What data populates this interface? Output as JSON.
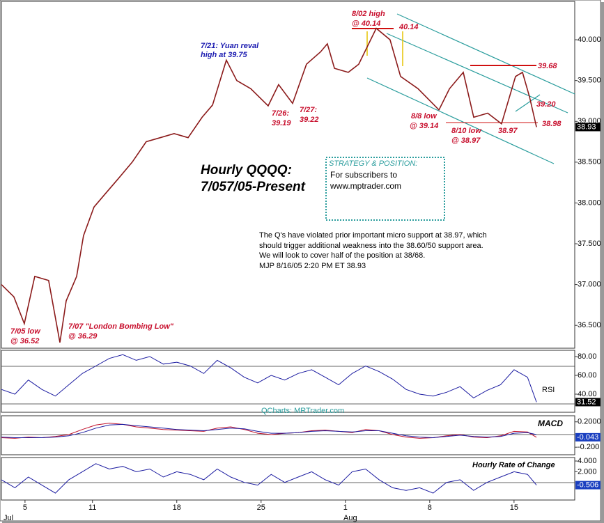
{
  "chart_data": [
    {
      "type": "line",
      "title": [
        "Hourly QQQQ:",
        "7/057/05-Present"
      ],
      "color": "#8b1a1a",
      "x": [
        -1.4,
        -0.66,
        -0.04,
        0.58,
        1.4,
        2.07,
        2.44,
        3.06,
        3.47,
        4.09,
        4.71,
        5.54,
        6.36,
        7.19,
        8.02,
        8.84,
        9.67,
        10.5,
        11.12,
        11.94,
        12.56,
        13.39,
        14.42,
        15.04,
        15.87,
        16.69,
        17.52,
        17.93,
        18.35,
        19.17,
        19.79,
        20.83,
        21.65,
        22.27,
        23.31,
        24.55,
        25.17,
        25.99,
        26.61,
        27.44,
        28.26,
        29.09,
        29.5,
        29.92,
        30.33
      ],
      "values": [
        37.0,
        36.85,
        36.52,
        37.1,
        37.05,
        36.29,
        36.8,
        37.1,
        37.6,
        37.95,
        38.1,
        38.3,
        38.5,
        38.75,
        38.8,
        38.85,
        38.8,
        39.05,
        39.2,
        39.75,
        39.5,
        39.4,
        39.19,
        39.45,
        39.22,
        39.7,
        39.85,
        39.95,
        39.65,
        39.6,
        39.7,
        40.14,
        40.0,
        39.55,
        39.4,
        39.14,
        39.4,
        39.6,
        39.05,
        39.1,
        38.97,
        39.55,
        39.6,
        39.3,
        38.93
      ],
      "xlim": [
        -1.4,
        32.6
      ],
      "xticks": [
        {
          "value": 0,
          "label": "5"
        },
        {
          "value": 4,
          "label": "11"
        },
        {
          "value": 9,
          "label": "18"
        },
        {
          "value": 14,
          "label": "25"
        },
        {
          "value": 19,
          "label": "1"
        },
        {
          "value": 24,
          "label": "8"
        },
        {
          "value": 29,
          "label": "15"
        }
      ],
      "months": [
        "Jul",
        "Aug"
      ],
      "ylim": [
        36.22,
        40.47
      ],
      "yticks": [
        {
          "value": 40,
          "label": "40.000"
        },
        {
          "value": 39.5,
          "label": "39.500"
        },
        {
          "value": 39,
          "label": "39.000"
        },
        {
          "value": 38.5,
          "label": "38.500"
        },
        {
          "value": 38,
          "label": "38.000"
        },
        {
          "value": 37.5,
          "label": "37.500"
        },
        {
          "value": 37,
          "label": "37.000"
        },
        {
          "value": 36.5,
          "label": "36.500"
        }
      ],
      "annotations": [
        "7/05 low",
        "@ 36.52",
        "7/07 \"London Bombing Low\"",
        "@ 36.29",
        "7/21: Yuan reval",
        "high at 39.75",
        "7/26:",
        "39.19",
        "7/27:",
        "39.22",
        "8/02 high",
        "@ 40.14",
        "40.14",
        "8/8 low",
        "@ 39.14",
        "8/10 low",
        "@ 38.97",
        "38.97",
        "39.68",
        "39.20",
        "38.98"
      ],
      "box": {
        "title": "STRATEGY & POSITION:",
        "lines": [
          "For subscribers to",
          "www.mptrader.com"
        ]
      },
      "commentary": [
        "The Q's have violated prior important micro support at 38.97, which",
        "should trigger additional weakness into the 38.60/50 support area.",
        "We will look to cover half of the position at 38/68.",
        "MJP 8/16/05 2:20 PM ET 38.93"
      ]
    },
    {
      "type": "line",
      "label": "RSI",
      "watermark": "QCharts: MRTrader.com",
      "color": "#1a1aa0",
      "x": [
        -1.4,
        -0.6,
        0.2,
        1.0,
        1.8,
        2.6,
        3.4,
        4.2,
        5.0,
        5.8,
        6.6,
        7.4,
        8.2,
        9.0,
        9.8,
        10.6,
        11.4,
        12.2,
        13.0,
        13.8,
        14.6,
        15.4,
        16.2,
        17.0,
        17.8,
        18.6,
        19.4,
        20.2,
        21.0,
        21.8,
        22.6,
        23.4,
        24.2,
        25.0,
        25.8,
        26.6,
        27.4,
        28.2,
        29.0,
        29.8,
        30.33
      ],
      "values": [
        45,
        40,
        55,
        45,
        38,
        50,
        62,
        70,
        78,
        82,
        76,
        80,
        72,
        74,
        70,
        62,
        76,
        68,
        58,
        52,
        60,
        55,
        62,
        66,
        58,
        50,
        62,
        70,
        64,
        56,
        45,
        40,
        38,
        42,
        48,
        36,
        44,
        50,
        66,
        58,
        31.52
      ],
      "xlim": [
        -1.4,
        32.6
      ],
      "ylim": [
        20.7,
        86.7
      ],
      "yticks": [
        {
          "value": 80,
          "label": "80.00"
        },
        {
          "value": 60,
          "label": "60.00"
        },
        {
          "value": 40,
          "label": "40.00"
        }
      ]
    },
    {
      "type": "line",
      "label": "MACD",
      "x": [
        -1.4,
        -0.6,
        0.2,
        1.0,
        1.8,
        2.6,
        3.4,
        4.2,
        5.0,
        5.8,
        6.6,
        7.4,
        8.2,
        9.0,
        9.8,
        10.6,
        11.4,
        12.2,
        13.0,
        13.8,
        14.6,
        15.4,
        16.2,
        17.0,
        17.8,
        18.6,
        19.4,
        20.2,
        21.0,
        21.8,
        22.6,
        23.4,
        24.2,
        25.0,
        25.8,
        26.6,
        27.4,
        28.2,
        29.0,
        29.8,
        30.33
      ],
      "series": [
        {
          "color": "#c0102a",
          "values": [
            -0.05,
            -0.06,
            -0.04,
            -0.05,
            -0.03,
            0.0,
            0.08,
            0.15,
            0.18,
            0.16,
            0.12,
            0.1,
            0.08,
            0.07,
            0.06,
            0.05,
            0.1,
            0.12,
            0.08,
            0.02,
            0.0,
            0.02,
            0.03,
            0.06,
            0.07,
            0.05,
            0.03,
            0.08,
            0.06,
            0.0,
            -0.04,
            -0.06,
            -0.05,
            -0.02,
            0.0,
            -0.04,
            -0.05,
            -0.02,
            0.05,
            0.04,
            -0.043
          ]
        },
        {
          "color": "#1a1aa0",
          "values": [
            -0.04,
            -0.05,
            -0.05,
            -0.05,
            -0.04,
            -0.02,
            0.03,
            0.1,
            0.15,
            0.16,
            0.14,
            0.12,
            0.1,
            0.08,
            0.07,
            0.06,
            0.08,
            0.1,
            0.09,
            0.05,
            0.02,
            0.02,
            0.03,
            0.05,
            0.06,
            0.05,
            0.04,
            0.06,
            0.06,
            0.02,
            -0.02,
            -0.04,
            -0.05,
            -0.03,
            -0.01,
            -0.03,
            -0.04,
            -0.03,
            0.02,
            0.03,
            0.0
          ]
        }
      ],
      "xlim": [
        -1.4,
        32.6
      ],
      "ylim": [
        -0.319,
        0.296
      ],
      "yticks": [
        {
          "value": 0.2,
          "label": "0.2000"
        },
        {
          "value": -0.2,
          "label": "-0.200"
        }
      ]
    },
    {
      "type": "line",
      "label": "Hourly Rate of Change",
      "color": "#1a1aa0",
      "x": [
        -1.4,
        -0.6,
        0.2,
        1.0,
        1.8,
        2.6,
        3.4,
        4.2,
        5.0,
        5.8,
        6.6,
        7.4,
        8.2,
        9.0,
        9.8,
        10.6,
        11.4,
        12.2,
        13.0,
        13.8,
        14.6,
        15.4,
        16.2,
        17.0,
        17.8,
        18.6,
        19.4,
        20.2,
        21.0,
        21.8,
        22.6,
        23.4,
        24.2,
        25.0,
        25.8,
        26.6,
        27.4,
        28.2,
        29.0,
        29.8,
        30.33
      ],
      "values": [
        0.5,
        -1,
        1,
        -0.5,
        -2,
        0.5,
        2,
        3.5,
        2.5,
        3,
        2,
        2.5,
        1,
        2,
        1.5,
        0.5,
        2.5,
        1,
        0,
        -0.5,
        1.5,
        0,
        1,
        2,
        0.5,
        -0.5,
        2,
        2.5,
        0.5,
        -1,
        -1.5,
        -1,
        -2,
        0,
        0.5,
        -1.5,
        0,
        1,
        2,
        1.5,
        -0.506
      ],
      "xlim": [
        -1.4,
        32.6
      ],
      "ylim": [
        -3.29,
        4.65
      ],
      "yticks": [
        {
          "value": 4,
          "label": "4.000"
        },
        {
          "value": 2,
          "label": "2.000"
        }
      ]
    }
  ]
}
